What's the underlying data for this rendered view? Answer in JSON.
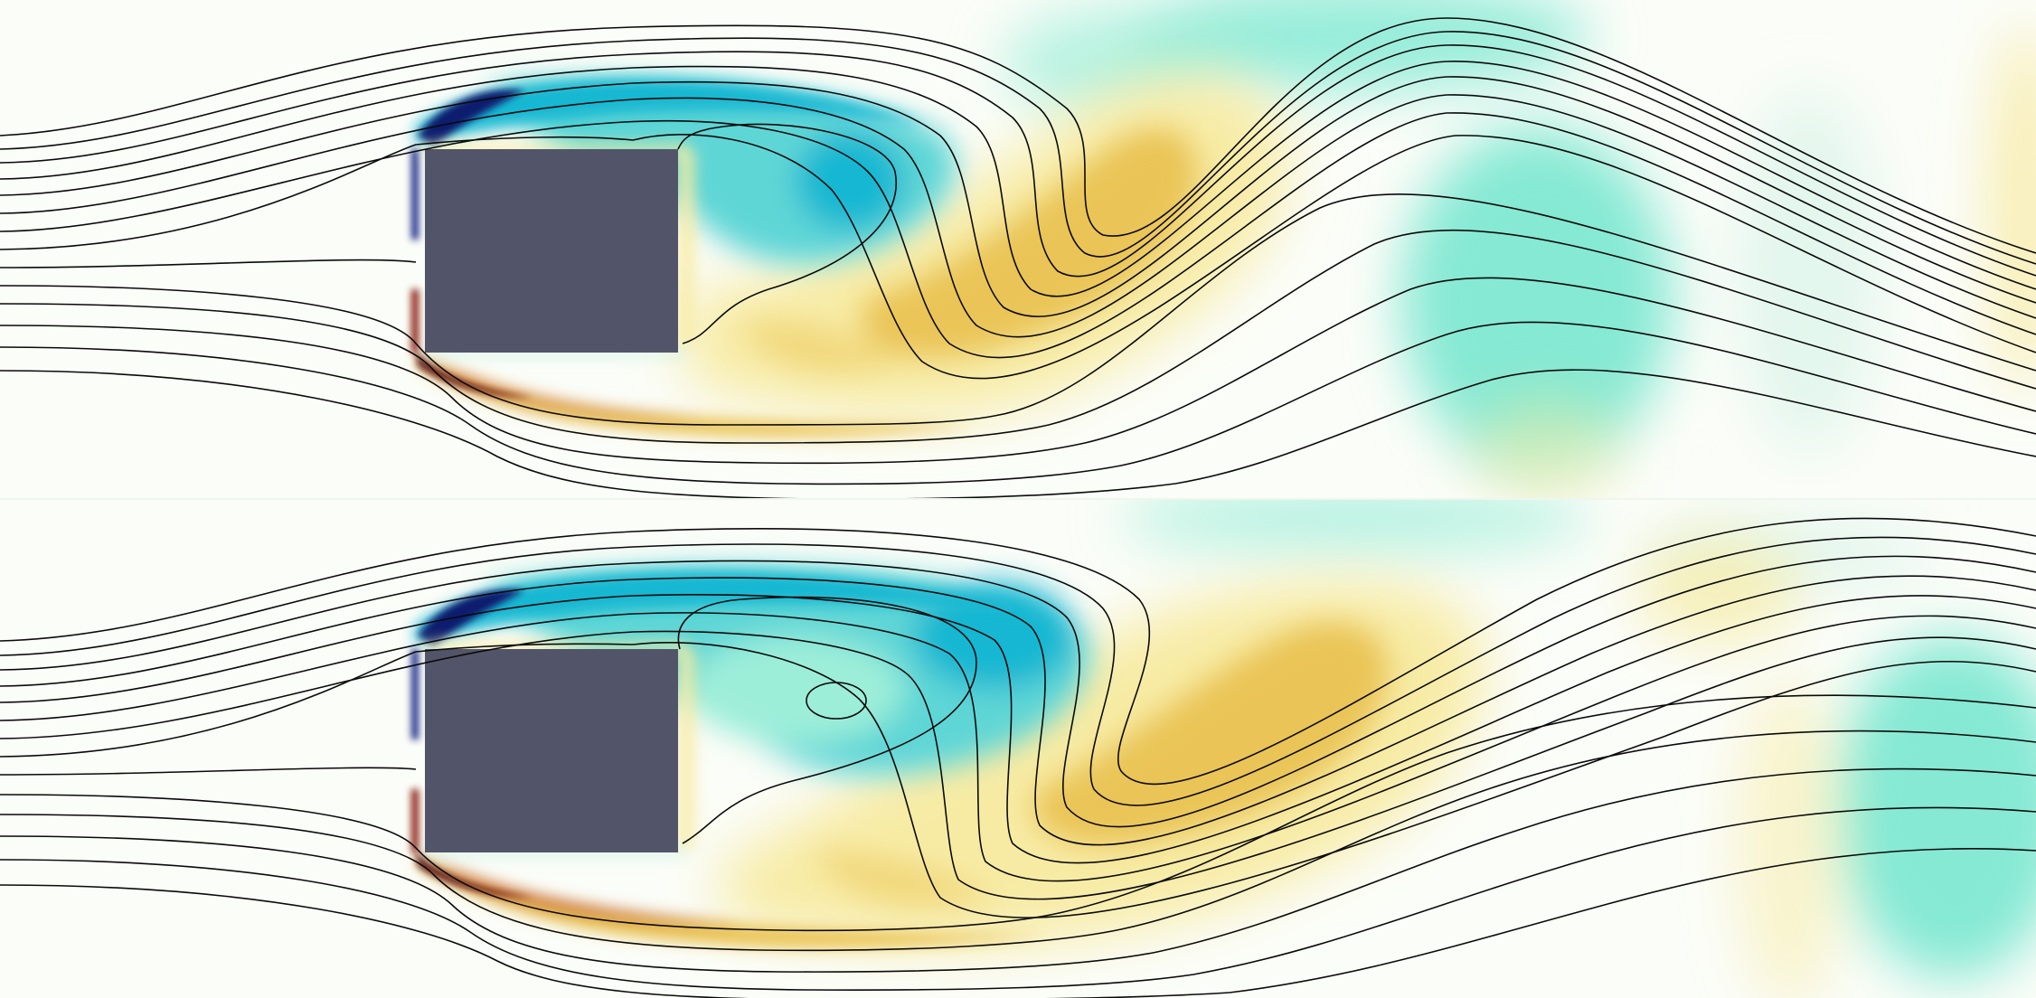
{
  "figure": {
    "panels": [
      {
        "id": "top",
        "description_key": "vorticity-streamlines-top"
      },
      {
        "id": "bottom",
        "description_key": "vorticity-streamlines-bottom"
      }
    ]
  },
  "colors": {
    "background": "#fbfdf8",
    "obstacle": "#525569",
    "negative_strong": "#0b1e6e",
    "negative_mid": "#14b7d2",
    "negative_light": "#7ee8d2",
    "positive_light": "#f7eba4",
    "positive_mid": "#eac457",
    "positive_strong": "#b23a14",
    "positive_extreme": "#5a0f08",
    "streamline": "#0a0a0a"
  }
}
